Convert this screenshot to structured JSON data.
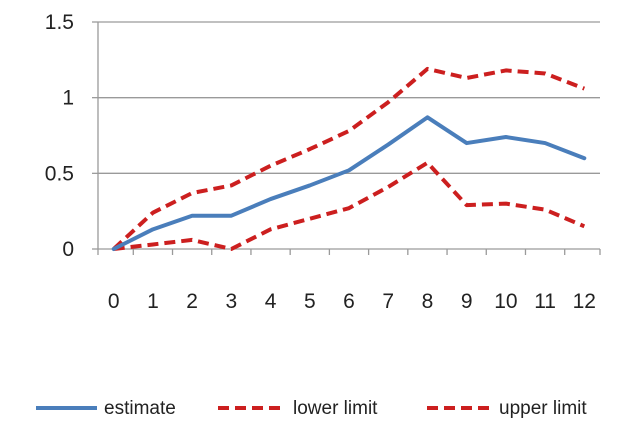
{
  "chart_data": {
    "type": "line",
    "title": "",
    "xlabel": "",
    "ylabel": "",
    "x": [
      0,
      1,
      2,
      3,
      4,
      5,
      6,
      7,
      8,
      9,
      10,
      11,
      12
    ],
    "xlim": [
      -0.4,
      12.4
    ],
    "ylim": [
      0,
      1.5
    ],
    "y_ticks": [
      0,
      0.5,
      1,
      1.5
    ],
    "y_tick_labels": [
      "0",
      "0.5",
      "1",
      "1.5"
    ],
    "x_tick_labels": [
      "0",
      "1",
      "2",
      "3",
      "4",
      "5",
      "6",
      "7",
      "8",
      "9",
      "10",
      "11",
      "12"
    ],
    "grid": "horizontal major gridlines",
    "legend_position": "bottom",
    "series": [
      {
        "name": "estimate",
        "color": "#4a7ebb",
        "style": "solid",
        "values": [
          0,
          0.13,
          0.22,
          0.22,
          0.33,
          0.42,
          0.52,
          0.69,
          0.87,
          0.7,
          0.74,
          0.7,
          0.6
        ]
      },
      {
        "name": "lower limit",
        "color": "#cc1f1f",
        "style": "dashed",
        "values": [
          0,
          0.03,
          0.06,
          0.0,
          0.13,
          0.2,
          0.27,
          0.41,
          0.57,
          0.29,
          0.3,
          0.26,
          0.15
        ]
      },
      {
        "name": "upper limit",
        "color": "#cc1f1f",
        "style": "dashed",
        "values": [
          0,
          0.24,
          0.37,
          0.42,
          0.55,
          0.66,
          0.78,
          0.97,
          1.19,
          1.13,
          1.18,
          1.16,
          1.06
        ]
      }
    ]
  }
}
